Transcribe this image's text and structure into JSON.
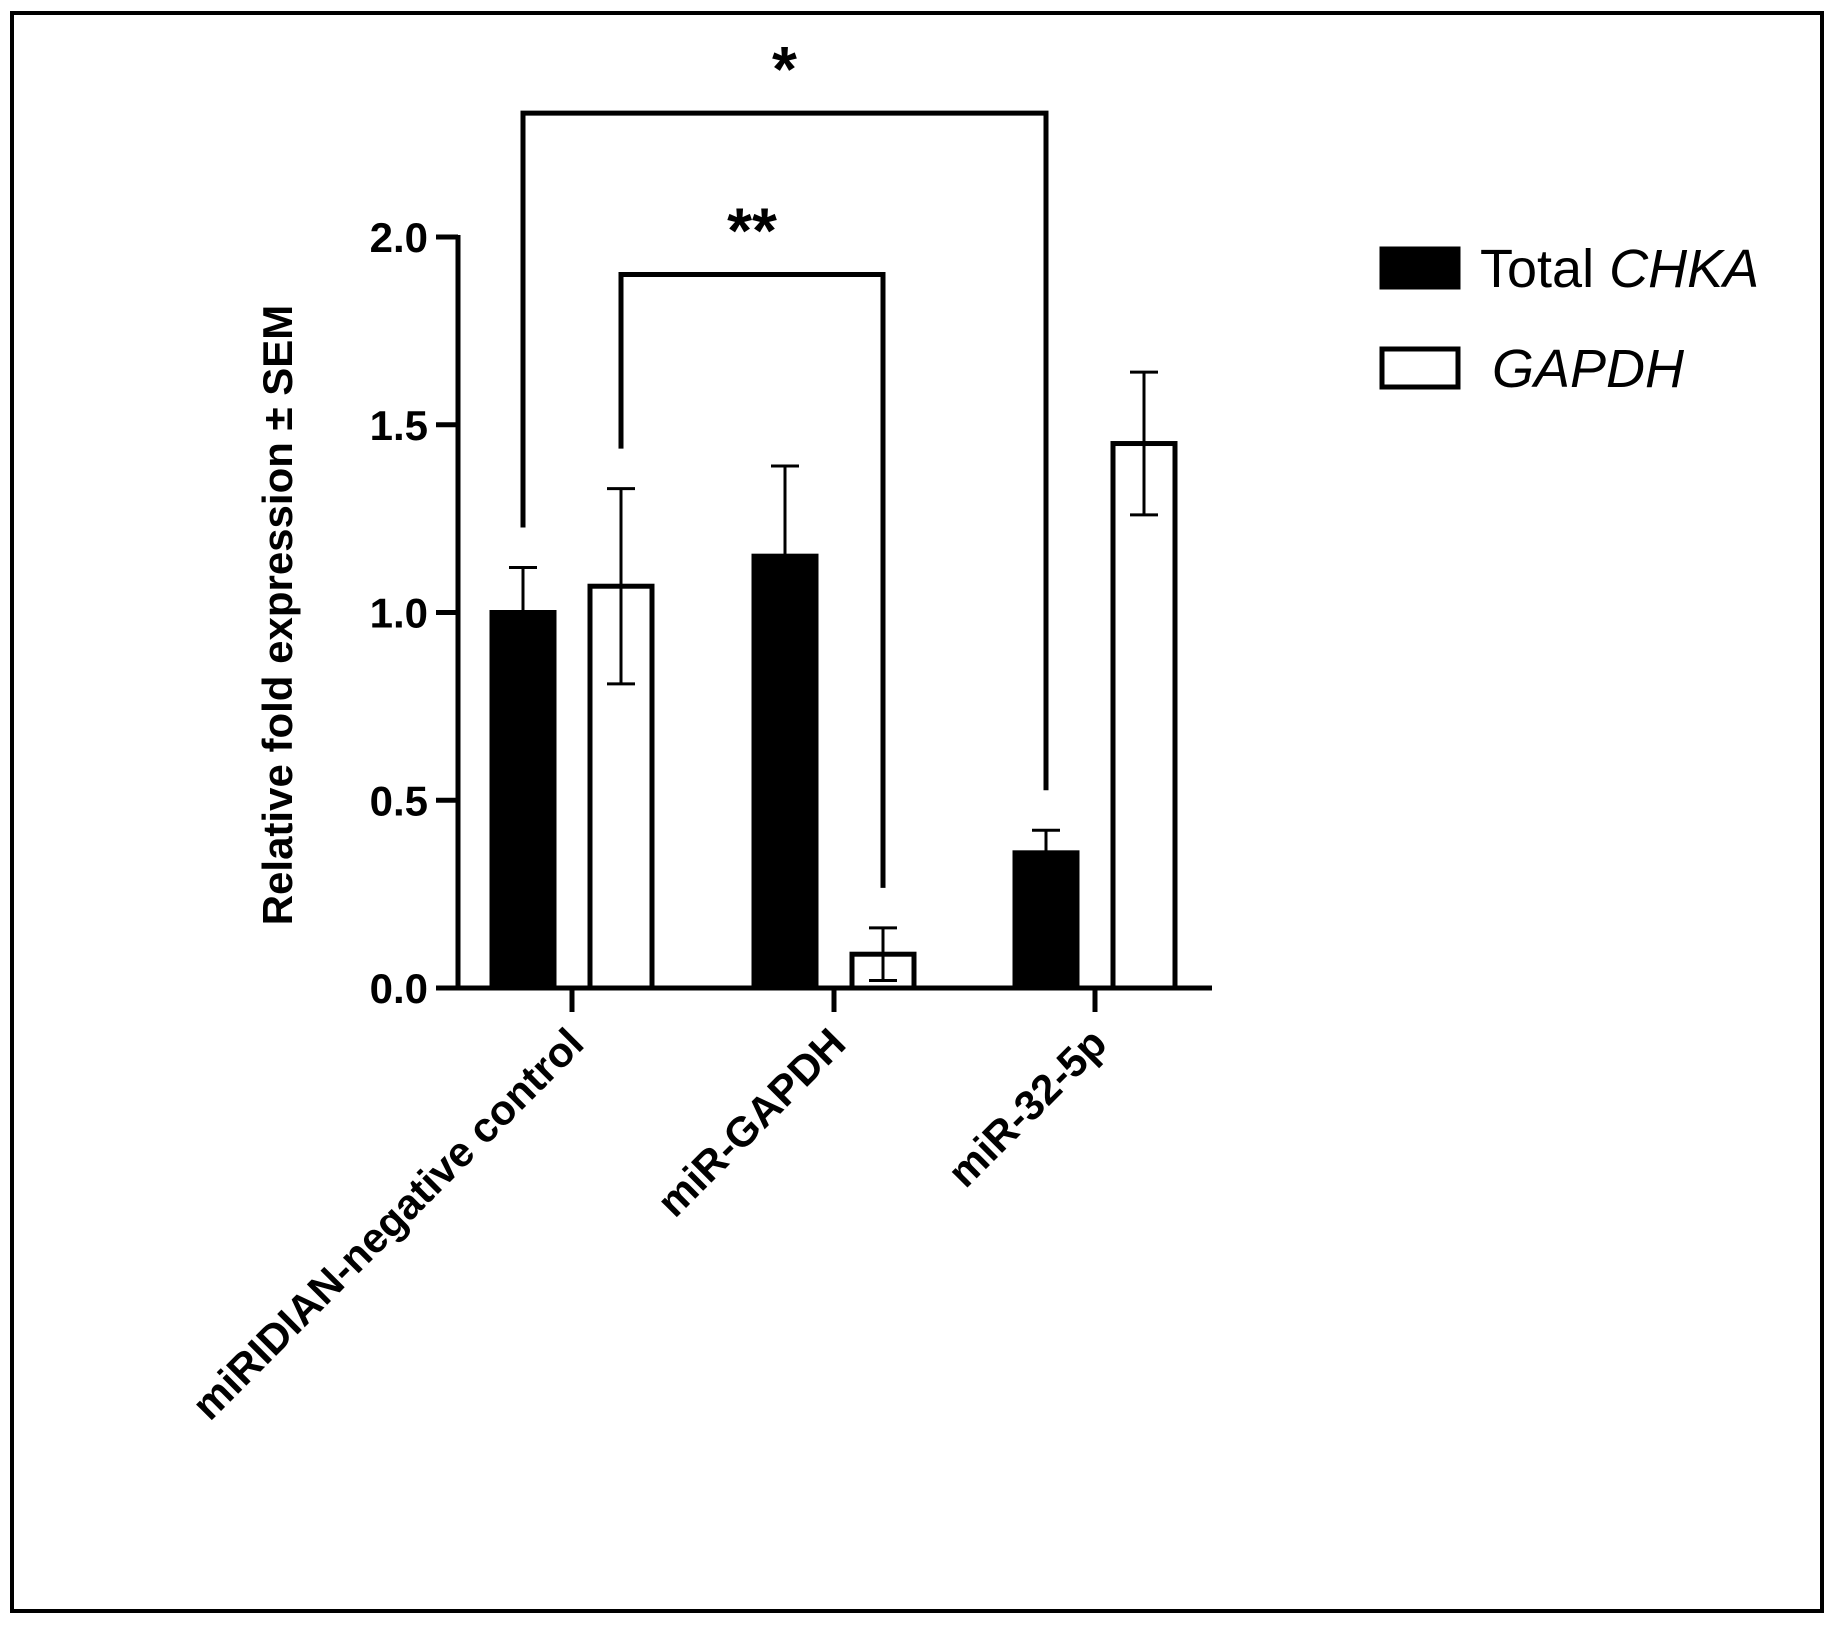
{
  "chart_data": {
    "type": "bar",
    "title": "",
    "xlabel": "",
    "ylabel": "Relative fold expression ± SEM",
    "ylim": [
      0,
      2.0
    ],
    "yticks": [
      "0.0",
      "0.5",
      "1.0",
      "1.5",
      "2.0"
    ],
    "categories": [
      "miRIDIAN-negative control",
      "miR-GAPDH",
      "miR-32-5p"
    ],
    "series": [
      {
        "name": "Total CHKA",
        "legend_prefix": "Total ",
        "legend_italic": "CHKA",
        "fill": "#000000",
        "values": [
          1.0,
          1.15,
          0.36
        ],
        "errors": [
          0.12,
          0.24,
          0.06
        ]
      },
      {
        "name": "GAPDH",
        "legend_prefix": "",
        "legend_italic": "GAPDH",
        "fill": "#ffffff",
        "values": [
          1.07,
          0.09,
          1.45
        ],
        "errors": [
          0.26,
          0.07,
          0.19
        ]
      }
    ],
    "significance": [
      {
        "label": "*",
        "from": {
          "category": 0,
          "series": 0
        },
        "to": {
          "category": 2,
          "series": 0
        },
        "bracket_value": 2.33
      },
      {
        "label": "**",
        "from": {
          "category": 0,
          "series": 1
        },
        "to": {
          "category": 1,
          "series": 1
        },
        "bracket_value": 1.9
      }
    ],
    "legend": {
      "position": "top-right"
    }
  }
}
